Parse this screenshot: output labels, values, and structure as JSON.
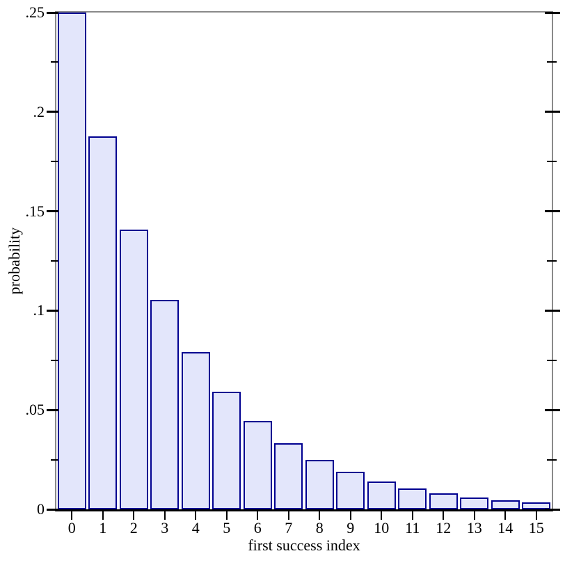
{
  "chart_data": {
    "type": "bar",
    "title": "",
    "xlabel": "first success index",
    "ylabel": "probability",
    "categories": [
      "0",
      "1",
      "2",
      "3",
      "4",
      "5",
      "6",
      "7",
      "8",
      "9",
      "10",
      "11",
      "12",
      "13",
      "14",
      "15"
    ],
    "values": [
      0.25,
      0.1875,
      0.140625,
      0.105469,
      0.079102,
      0.059326,
      0.044495,
      0.033371,
      0.025028,
      0.018771,
      0.014078,
      0.010559,
      0.007919,
      0.005939,
      0.004454,
      0.003341
    ],
    "ylim": [
      0,
      0.25
    ],
    "xlim_slots": 16,
    "y_major_ticks": [
      {
        "value": 0,
        "label": "0"
      },
      {
        "value": 0.05,
        "label": ".05"
      },
      {
        "value": 0.1,
        "label": ".1"
      },
      {
        "value": 0.15,
        "label": ".15"
      },
      {
        "value": 0.2,
        "label": ".2"
      },
      {
        "value": 0.25,
        "label": ".25"
      }
    ],
    "y_minor_ticks": [
      0.025,
      0.075,
      0.125,
      0.175,
      0.225
    ],
    "grid": false,
    "legend": "none",
    "frame": "box with mirrored right-side ticks, bottom axis ticks under each bar"
  },
  "style": {
    "background": "#ffffff",
    "frame_color": "#8a8a8a",
    "bottom_axis_color": "#000000",
    "tick_color": "#000000",
    "text_color": "#000000",
    "bar_fill": "#e3e6fb",
    "bar_border": "#000090"
  }
}
